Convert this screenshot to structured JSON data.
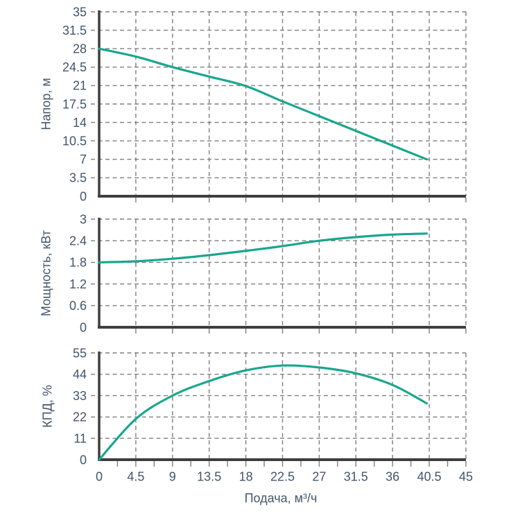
{
  "figure": {
    "background": "#ffffff",
    "x_axis": {
      "label": "Подача, м³/ч",
      "min": 0,
      "max": 45,
      "major_tick_step": 4.5,
      "minor_tick_step": 2.25,
      "tick_labels": [
        "0",
        "4.5",
        "9",
        "13.5",
        "18",
        "22.5",
        "27",
        "31.5",
        "36",
        "40.5",
        "45"
      ]
    },
    "colors": {
      "curve": "#18a78d",
      "axis": "#3e3e3e",
      "grid": "#7e7e7e",
      "text": "#44546a"
    }
  },
  "chart_data": [
    {
      "type": "line",
      "name": "head-curve",
      "ylabel": "Напор, м",
      "xlabel": "Подача, м³/ч",
      "ylim": [
        0,
        35
      ],
      "ytick_step": 3.5,
      "ytick_labels": [
        "0",
        "3.5",
        "7",
        "10.5",
        "14",
        "17.5",
        "21",
        "24.5",
        "28",
        "31.5",
        "35"
      ],
      "x": [
        0,
        4.5,
        9,
        13.5,
        18,
        22.5,
        27,
        31.5,
        36,
        40.2
      ],
      "y": [
        28,
        26.5,
        24.5,
        22.7,
        20.9,
        18,
        15.2,
        12.4,
        9.6,
        7
      ],
      "grid": true,
      "legend": false
    },
    {
      "type": "line",
      "name": "power-curve",
      "ylabel": "Мощность, кВт",
      "xlabel": "Подача, м³/ч",
      "ylim": [
        0,
        3
      ],
      "ytick_step": 0.6,
      "ytick_labels": [
        "0",
        "0.6",
        "1.2",
        "1.8",
        "2.4",
        "3"
      ],
      "x": [
        0,
        4.5,
        9,
        13.5,
        18,
        22.5,
        27,
        31.5,
        36,
        40.2
      ],
      "y": [
        1.8,
        1.83,
        1.9,
        2.0,
        2.12,
        2.25,
        2.4,
        2.5,
        2.57,
        2.6
      ],
      "grid": true,
      "legend": false
    },
    {
      "type": "line",
      "name": "efficiency-curve",
      "ylabel": "КПД, %",
      "xlabel": "Подача, м³/ч",
      "ylim": [
        0,
        55
      ],
      "ytick_step": 11,
      "ytick_labels": [
        "0",
        "11",
        "22",
        "33",
        "44",
        "55"
      ],
      "x": [
        0,
        4.5,
        9,
        13.5,
        18,
        22.5,
        27,
        31.5,
        36,
        40.2
      ],
      "y": [
        0,
        21,
        33,
        40.5,
        46,
        48.5,
        47.5,
        44.5,
        38.5,
        29
      ],
      "grid": true,
      "legend": false
    }
  ]
}
